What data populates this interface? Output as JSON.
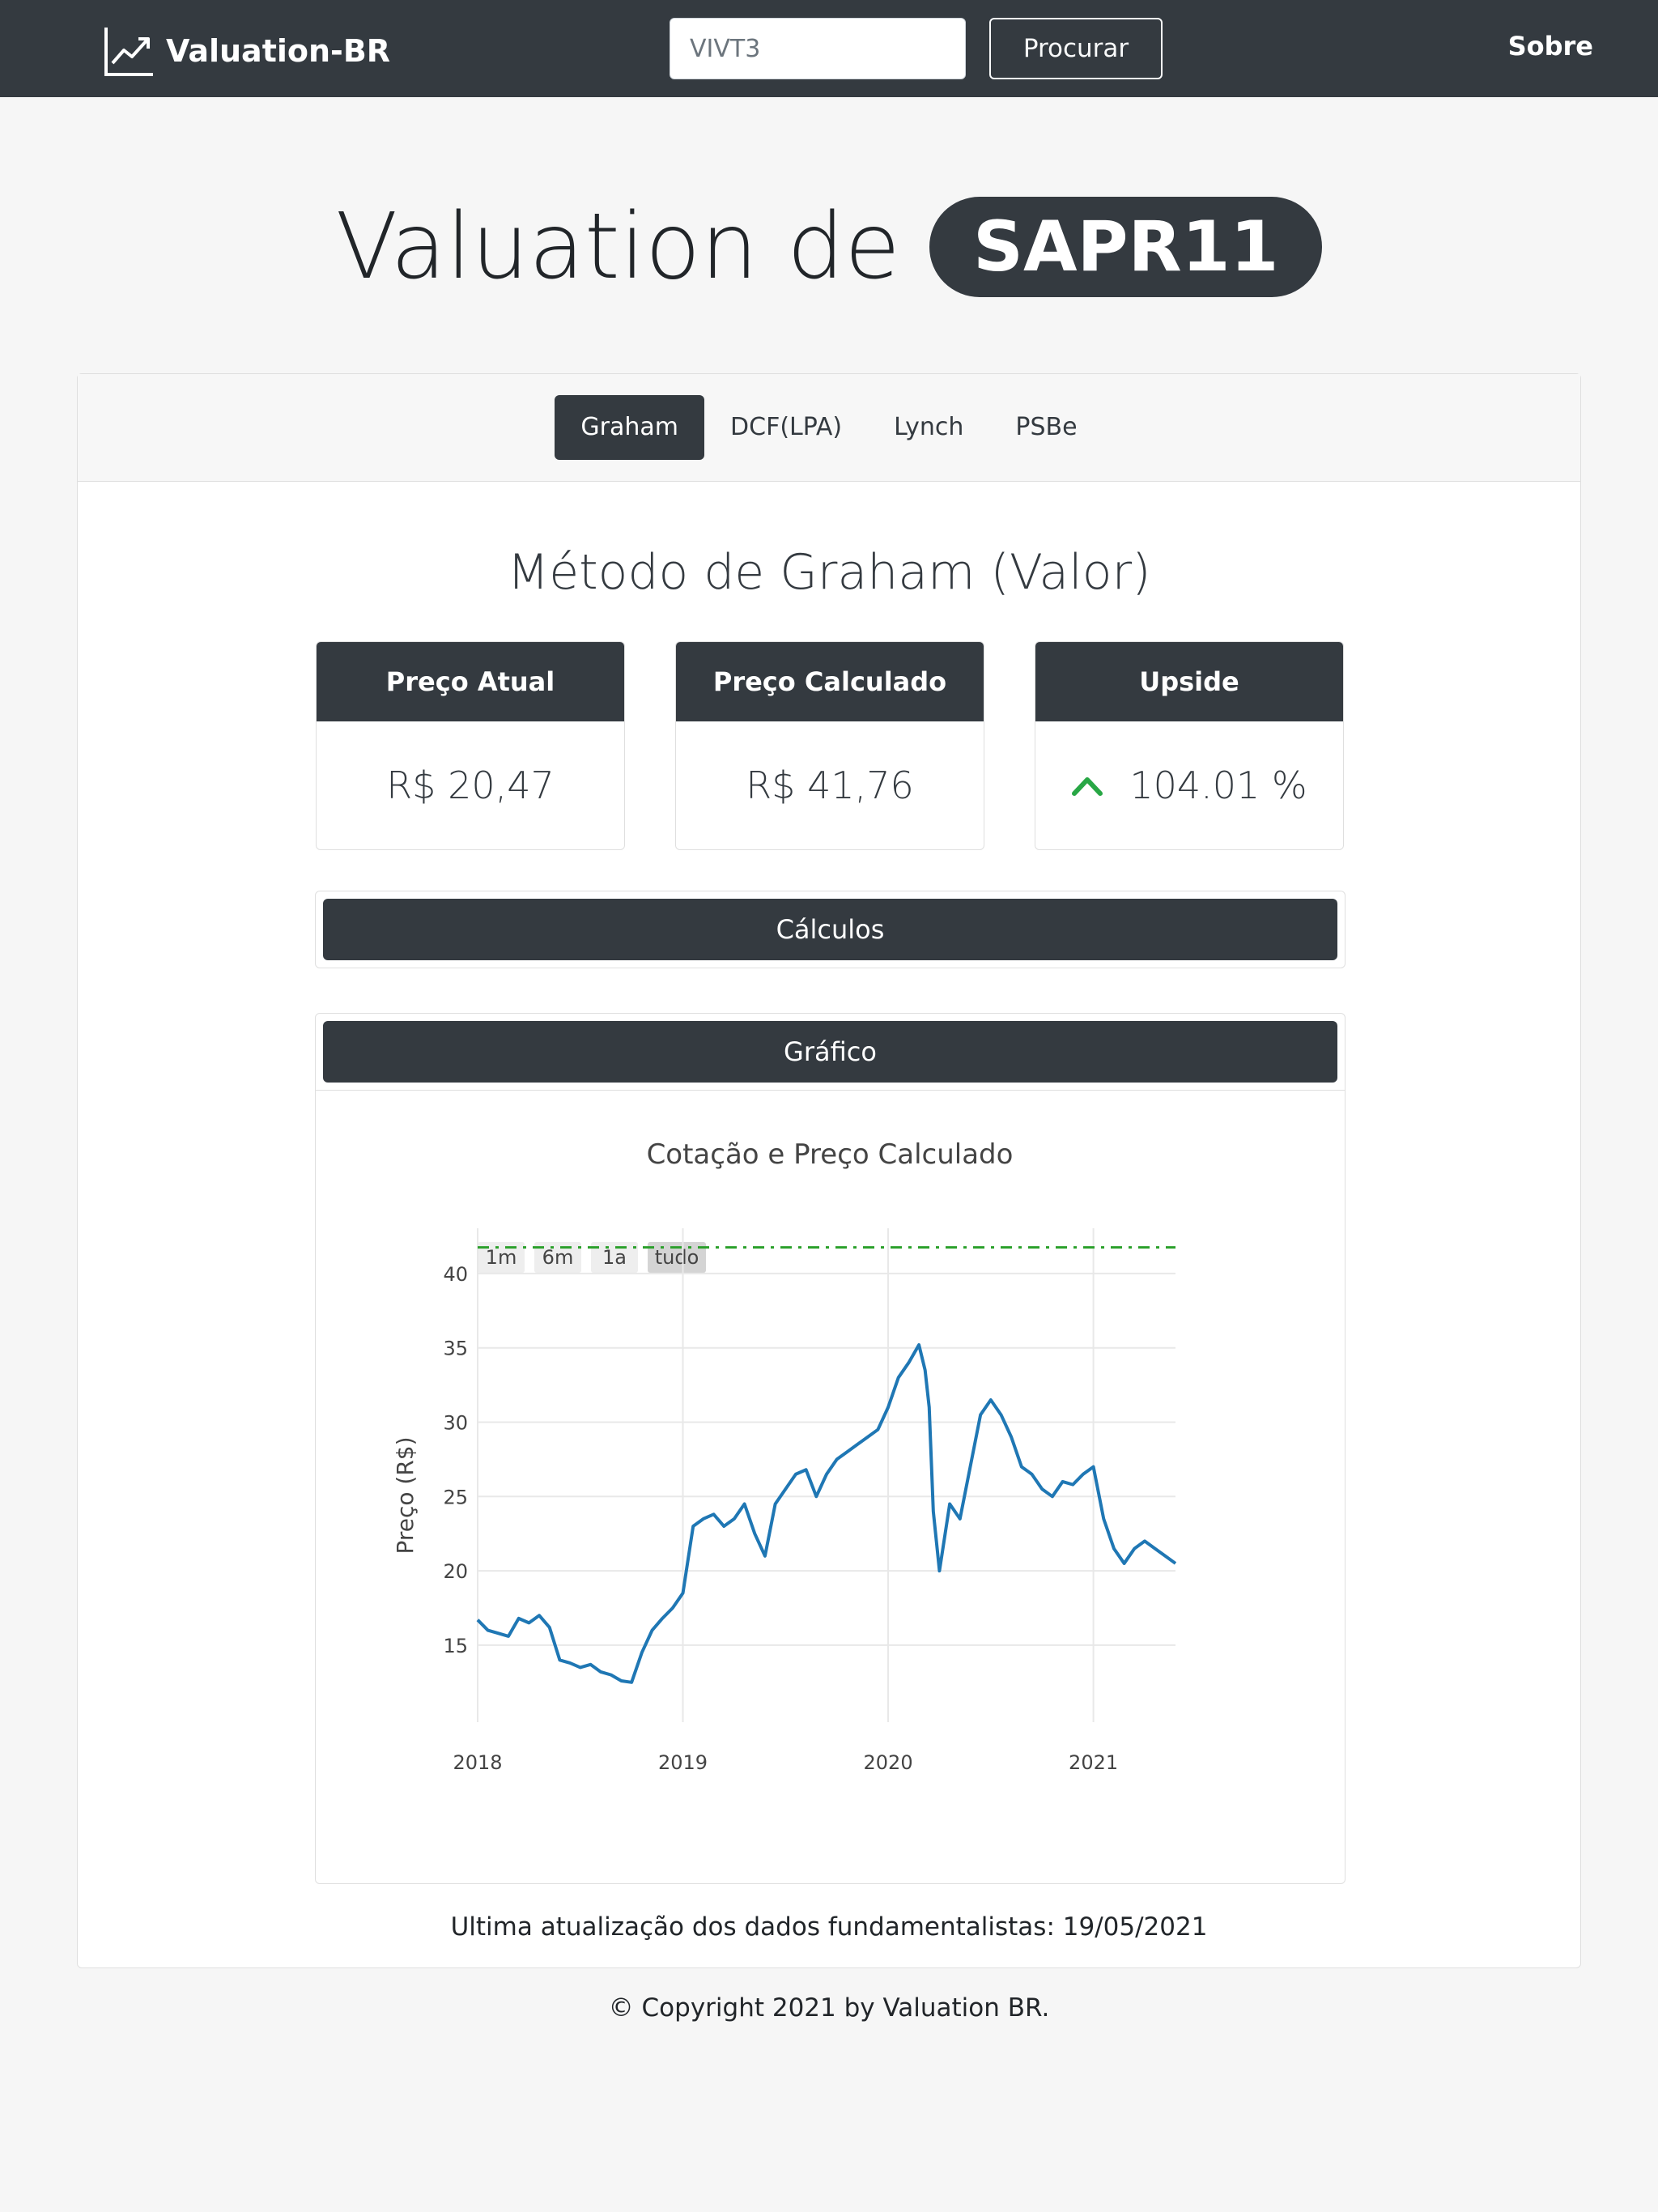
{
  "navbar": {
    "brand": "Valuation-BR",
    "brand_icon": "line-chart-trending-up-icon",
    "search_value": "VIVT3",
    "search_button": "Procurar",
    "about": "Sobre"
  },
  "hero": {
    "prefix": "Valuation de",
    "ticker": "SAPR11"
  },
  "tabs": [
    {
      "label": "Graham",
      "active": true
    },
    {
      "label": "DCF(LPA)",
      "active": false
    },
    {
      "label": "Lynch",
      "active": false
    },
    {
      "label": "PSBe",
      "active": false
    }
  ],
  "method_title": "Método de Graham (Valor)",
  "stats": [
    {
      "label": "Preço Atual",
      "value": "R$ 20,47"
    },
    {
      "label": "Preço Calculado",
      "value": "R$ 41,76"
    },
    {
      "label": "Upside",
      "value": "104.01 %",
      "icon": "chevron-up-icon",
      "icon_color": "#28a745"
    }
  ],
  "sections": {
    "calculations": "Cálculos",
    "chart": "Gráfico"
  },
  "range_buttons": [
    "1m",
    "6m",
    "1a",
    "tudo"
  ],
  "chart_data": {
    "type": "line",
    "title": "Cotação e Preço Calculado",
    "ylabel": "Preço (R$)",
    "xlabel": "",
    "x_ticks": [
      "2018",
      "2019",
      "2020",
      "2021"
    ],
    "y_ticks": [
      15,
      20,
      25,
      30,
      35,
      40
    ],
    "xlim": [
      2018.0,
      2021.4
    ],
    "ylim": [
      12,
      42.5
    ],
    "grid": true,
    "series": [
      {
        "type": "line",
        "color": "#1f77b4",
        "x": [
          2018.0,
          2018.05,
          2018.1,
          2018.15,
          2018.2,
          2018.25,
          2018.3,
          2018.35,
          2018.4,
          2018.45,
          2018.5,
          2018.55,
          2018.6,
          2018.65,
          2018.7,
          2018.75,
          2018.8,
          2018.85,
          2018.9,
          2018.95,
          2019.0,
          2019.05,
          2019.1,
          2019.15,
          2019.2,
          2019.25,
          2019.3,
          2019.35,
          2019.4,
          2019.45,
          2019.5,
          2019.55,
          2019.6,
          2019.65,
          2019.7,
          2019.75,
          2019.8,
          2019.85,
          2019.9,
          2019.95,
          2020.0,
          2020.05,
          2020.1,
          2020.15,
          2020.18,
          2020.2,
          2020.22,
          2020.25,
          2020.3,
          2020.35,
          2020.4,
          2020.45,
          2020.5,
          2020.55,
          2020.6,
          2020.65,
          2020.7,
          2020.75,
          2020.8,
          2020.85,
          2020.9,
          2020.95,
          2021.0,
          2021.05,
          2021.1,
          2021.15,
          2021.2,
          2021.25,
          2021.3,
          2021.35,
          2021.4
        ],
        "y": [
          16.7,
          16.0,
          15.8,
          15.6,
          16.8,
          16.5,
          17.0,
          16.2,
          14.0,
          13.8,
          13.5,
          13.7,
          13.2,
          13.0,
          12.6,
          12.5,
          14.5,
          16.0,
          16.8,
          17.5,
          18.5,
          23.0,
          23.5,
          23.8,
          23.0,
          23.5,
          24.5,
          22.5,
          21.0,
          24.5,
          25.5,
          26.5,
          26.8,
          25.0,
          26.5,
          27.5,
          28.0,
          28.5,
          29.0,
          29.5,
          31.0,
          33.0,
          34.0,
          35.2,
          33.5,
          31.0,
          24.0,
          20.0,
          24.5,
          23.5,
          27.0,
          30.5,
          31.5,
          30.5,
          29.0,
          27.0,
          26.5,
          25.5,
          25.0,
          26.0,
          25.8,
          26.5,
          27.0,
          23.5,
          21.5,
          20.5,
          21.5,
          22.0,
          21.5,
          21.0,
          20.5
        ]
      },
      {
        "type": "dash-dot",
        "color": "#2ca02c",
        "x": [
          2018.0,
          2021.4
        ],
        "y": [
          41.76,
          41.76
        ]
      }
    ]
  },
  "footer": {
    "update_label": "Ultima atualização dos dados fundamentalistas: 19/05/2021",
    "copyright": "© Copyright 2021 by Valuation BR."
  }
}
